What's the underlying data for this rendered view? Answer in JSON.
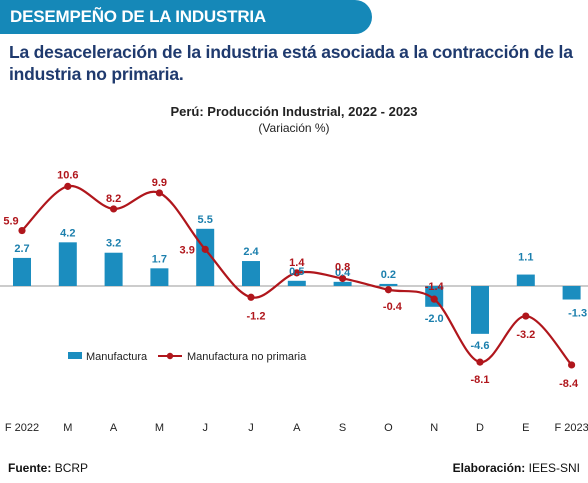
{
  "header": {
    "title": "DESEMPEÑO DE LA INDUSTRIA"
  },
  "subtitle": "La desaceleración de la industria está asociada a la contracción de la industria no primaria.",
  "footer": {
    "source_label": "Fuente:",
    "source_value": "BCRP",
    "author_label": "Elaboración:",
    "author_value": "IEES-SNI"
  },
  "colors": {
    "header_bg": "#1588b8",
    "bar": "#1b8dbf",
    "line": "#b0161c",
    "subtitle": "#1f3a6e"
  },
  "chart_data": {
    "type": "bar",
    "title": "Perú: Producción Industrial, 2022 - 2023",
    "subtitle": "(Variación %)",
    "categories": [
      "F 2022",
      "M",
      "A",
      "M",
      "J",
      "J",
      "A",
      "S",
      "O",
      "N",
      "D",
      "E",
      "F 2023"
    ],
    "series": [
      {
        "name": "Manufactura",
        "type": "bar",
        "color": "#1b8dbf",
        "values": [
          2.7,
          4.2,
          3.2,
          1.7,
          5.5,
          2.4,
          0.5,
          0.4,
          0.2,
          -2.0,
          -4.6,
          1.1,
          -1.3
        ]
      },
      {
        "name": "Manufactura no primaria",
        "type": "line",
        "color": "#b0161c",
        "values": [
          5.9,
          10.6,
          8.2,
          9.9,
          3.9,
          -1.2,
          1.4,
          0.8,
          -0.4,
          -1.4,
          -8.1,
          -3.2,
          -8.4
        ]
      }
    ],
    "legend": "bottom-left",
    "grid": false
  }
}
